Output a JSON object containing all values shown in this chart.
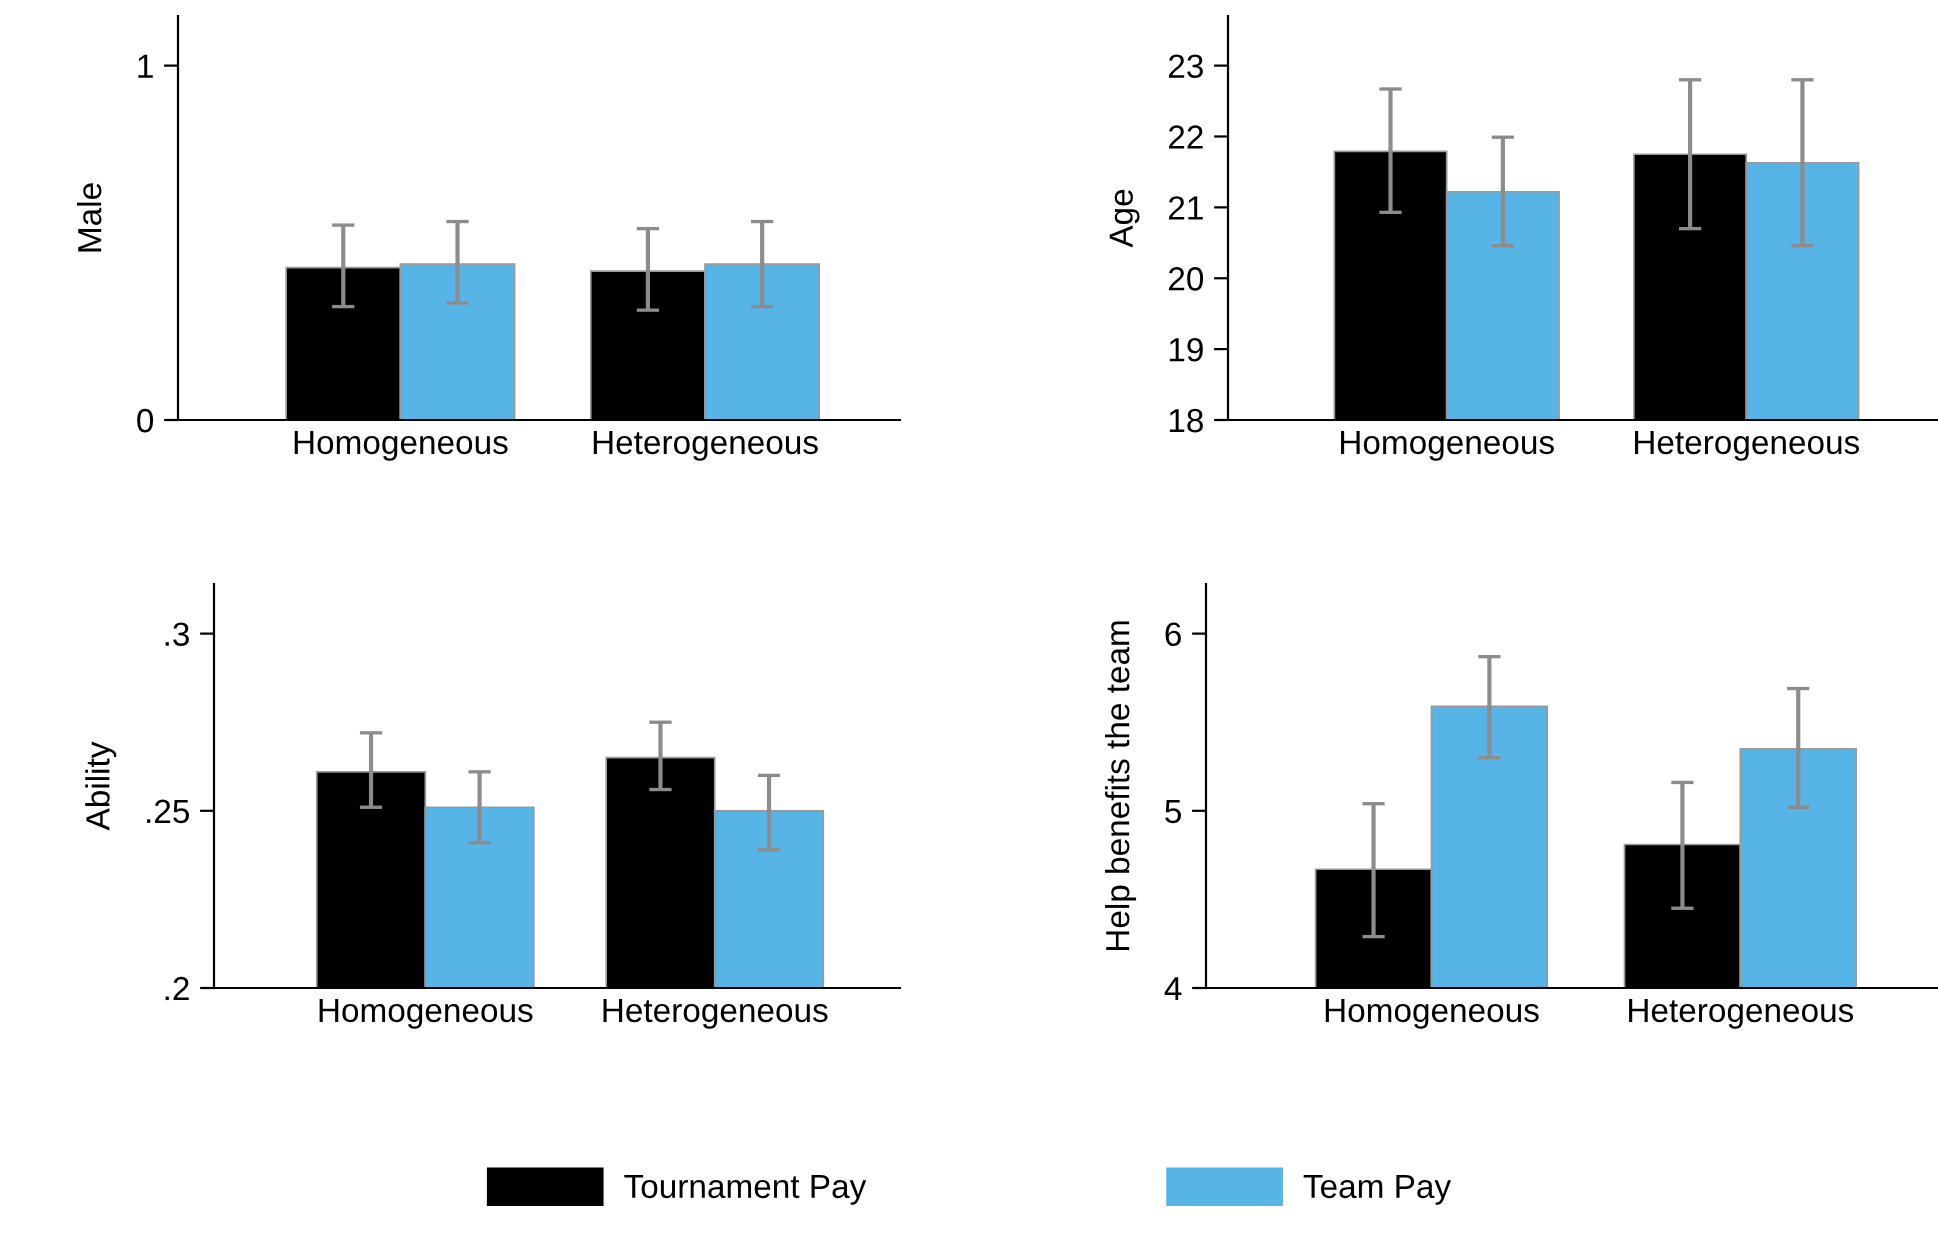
{
  "chart_data": [
    {
      "type": "bar",
      "ylabel": "Male",
      "categories": [
        "Homogeneous",
        "Heterogeneous"
      ],
      "ylim": [
        0,
        1.14
      ],
      "yticks": [
        0,
        1
      ],
      "grid": false,
      "legend": "bottom",
      "series": [
        {
          "name": "Tournament Pay",
          "color": "#000000",
          "values": [
            0.43,
            0.42
          ],
          "errors": [
            [
              0.32,
              0.55
            ],
            [
              0.31,
              0.54
            ]
          ]
        },
        {
          "name": "Team Pay",
          "color": "#56b4e6",
          "values": [
            0.44,
            0.44
          ],
          "errors": [
            [
              0.33,
              0.56
            ],
            [
              0.32,
              0.56
            ]
          ]
        }
      ]
    },
    {
      "type": "bar",
      "ylabel": "Age",
      "categories": [
        "Homogeneous",
        "Heterogeneous"
      ],
      "ylim": [
        18,
        23.7
      ],
      "yticks": [
        18,
        19,
        20,
        21,
        22,
        23
      ],
      "grid": false,
      "series": [
        {
          "color": "#000000",
          "values": [
            21.79,
            21.75
          ],
          "errors": [
            [
              20.93,
              22.67
            ],
            [
              20.7,
              22.8
            ]
          ]
        },
        {
          "color": "#56b4e6",
          "values": [
            21.22,
            21.63
          ],
          "errors": [
            [
              20.46,
              21.99
            ],
            [
              20.46,
              22.8
            ]
          ]
        }
      ]
    },
    {
      "type": "bar",
      "ylabel": "Ability",
      "categories": [
        "Homogeneous",
        "Heterogeneous"
      ],
      "ylim": [
        0.2,
        0.314
      ],
      "yticks": [
        {
          "value": 0.2,
          "label": ".2"
        },
        {
          "value": 0.25,
          "label": ".25"
        },
        {
          "value": 0.3,
          "label": ".3"
        }
      ],
      "grid": false,
      "series": [
        {
          "color": "#000000",
          "values": [
            0.261,
            0.265
          ],
          "errors": [
            [
              0.251,
              0.272
            ],
            [
              0.256,
              0.275
            ]
          ]
        },
        {
          "color": "#56b4e6",
          "values": [
            0.251,
            0.25
          ],
          "errors": [
            [
              0.241,
              0.261
            ],
            [
              0.239,
              0.26
            ]
          ]
        }
      ]
    },
    {
      "type": "bar",
      "ylabel": "Help benefits the team",
      "categories": [
        "Homogeneous",
        "Heterogeneous"
      ],
      "ylim": [
        4,
        6.28
      ],
      "yticks": [
        4,
        5,
        6
      ],
      "grid": false,
      "series": [
        {
          "color": "#000000",
          "values": [
            4.67,
            4.81
          ],
          "errors": [
            [
              4.29,
              5.04
            ],
            [
              4.45,
              5.16
            ]
          ]
        },
        {
          "color": "#56b4e6",
          "values": [
            5.59,
            5.35
          ],
          "errors": [
            [
              5.3,
              5.87
            ],
            [
              5.02,
              5.69
            ]
          ]
        }
      ]
    }
  ]
}
